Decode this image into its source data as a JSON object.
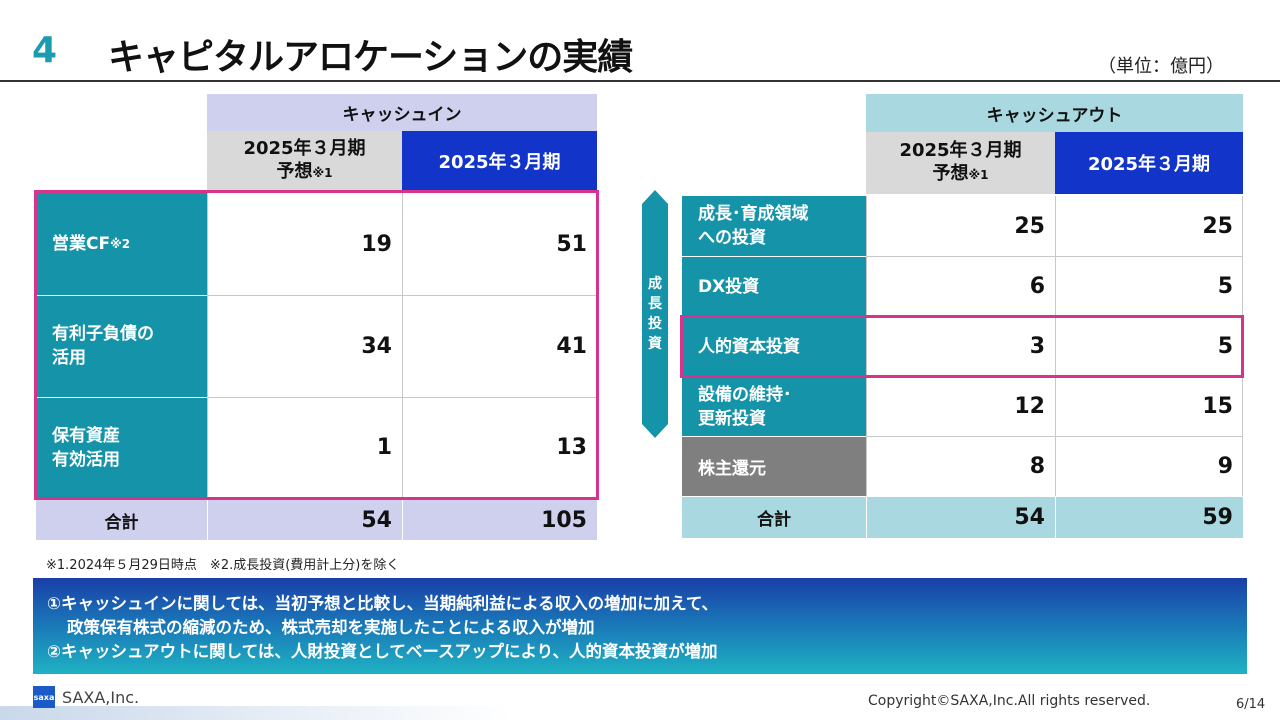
{
  "title": {
    "number": "4",
    "text": "キャピタルアロケーションの実績",
    "unit": "（単位：億円）"
  },
  "cash_in": {
    "header": "キャッシュイン",
    "col_forecast_line1": "2025年３月期",
    "col_forecast_line2": "予想",
    "col_forecast_note": "※1",
    "col_actual": "2025年３月期",
    "rows": [
      {
        "label": "営業CF",
        "note": "※2",
        "forecast": "19",
        "actual": "51"
      },
      {
        "label_line1": "有利子負債の",
        "label_line2": "活用",
        "forecast": "34",
        "actual": "41"
      },
      {
        "label_line1": "保有資産",
        "label_line2": "有効活用",
        "forecast": "1",
        "actual": "13"
      }
    ],
    "total": {
      "label": "合計",
      "forecast": "54",
      "actual": "105"
    }
  },
  "growth_marker": {
    "c1": "成",
    "c2": "長",
    "c3": "投",
    "c4": "資"
  },
  "cash_out": {
    "header": "キャッシュアウト",
    "col_forecast_line1": "2025年３月期",
    "col_forecast_line2": "予想",
    "col_forecast_note": "※1",
    "col_actual": "2025年３月期",
    "rows": [
      {
        "label_line1": "成長･育成領域",
        "label_line2": "への投資",
        "forecast": "25",
        "actual": "25"
      },
      {
        "label": "DX投資",
        "forecast": "6",
        "actual": "5"
      },
      {
        "label": "人的資本投資",
        "forecast": "3",
        "actual": "5"
      },
      {
        "label_line1": "設備の維持･",
        "label_line2": "更新投資",
        "forecast": "12",
        "actual": "15"
      },
      {
        "label": "株主還元",
        "forecast": "8",
        "actual": "9"
      }
    ],
    "total": {
      "label": "合計",
      "forecast": "54",
      "actual": "59"
    }
  },
  "notes": "※1.2024年５月29日時点　※2.成長投資(費用計上分)を除く",
  "banner": {
    "line1": "①キャッシュインに関しては、当初予想と比較し、当期純利益による収入の増加に加えて、",
    "line2": "政策保有株式の縮減のため、株式売却を実施したことによる収入が増加",
    "line3": "②キャッシュアウトに関しては、人財投資としてベースアップにより、人的資本投資が増加"
  },
  "footer": {
    "logo": "saxa",
    "company": "SAXA,Inc.",
    "copyright": "Copyright©SAXA,Inc.All rights reserved.",
    "page": "6/14"
  },
  "colors": {
    "accent_teal": "#1593a8",
    "header_blue": "#1234c8",
    "highlight_pink": "#d6338d"
  }
}
